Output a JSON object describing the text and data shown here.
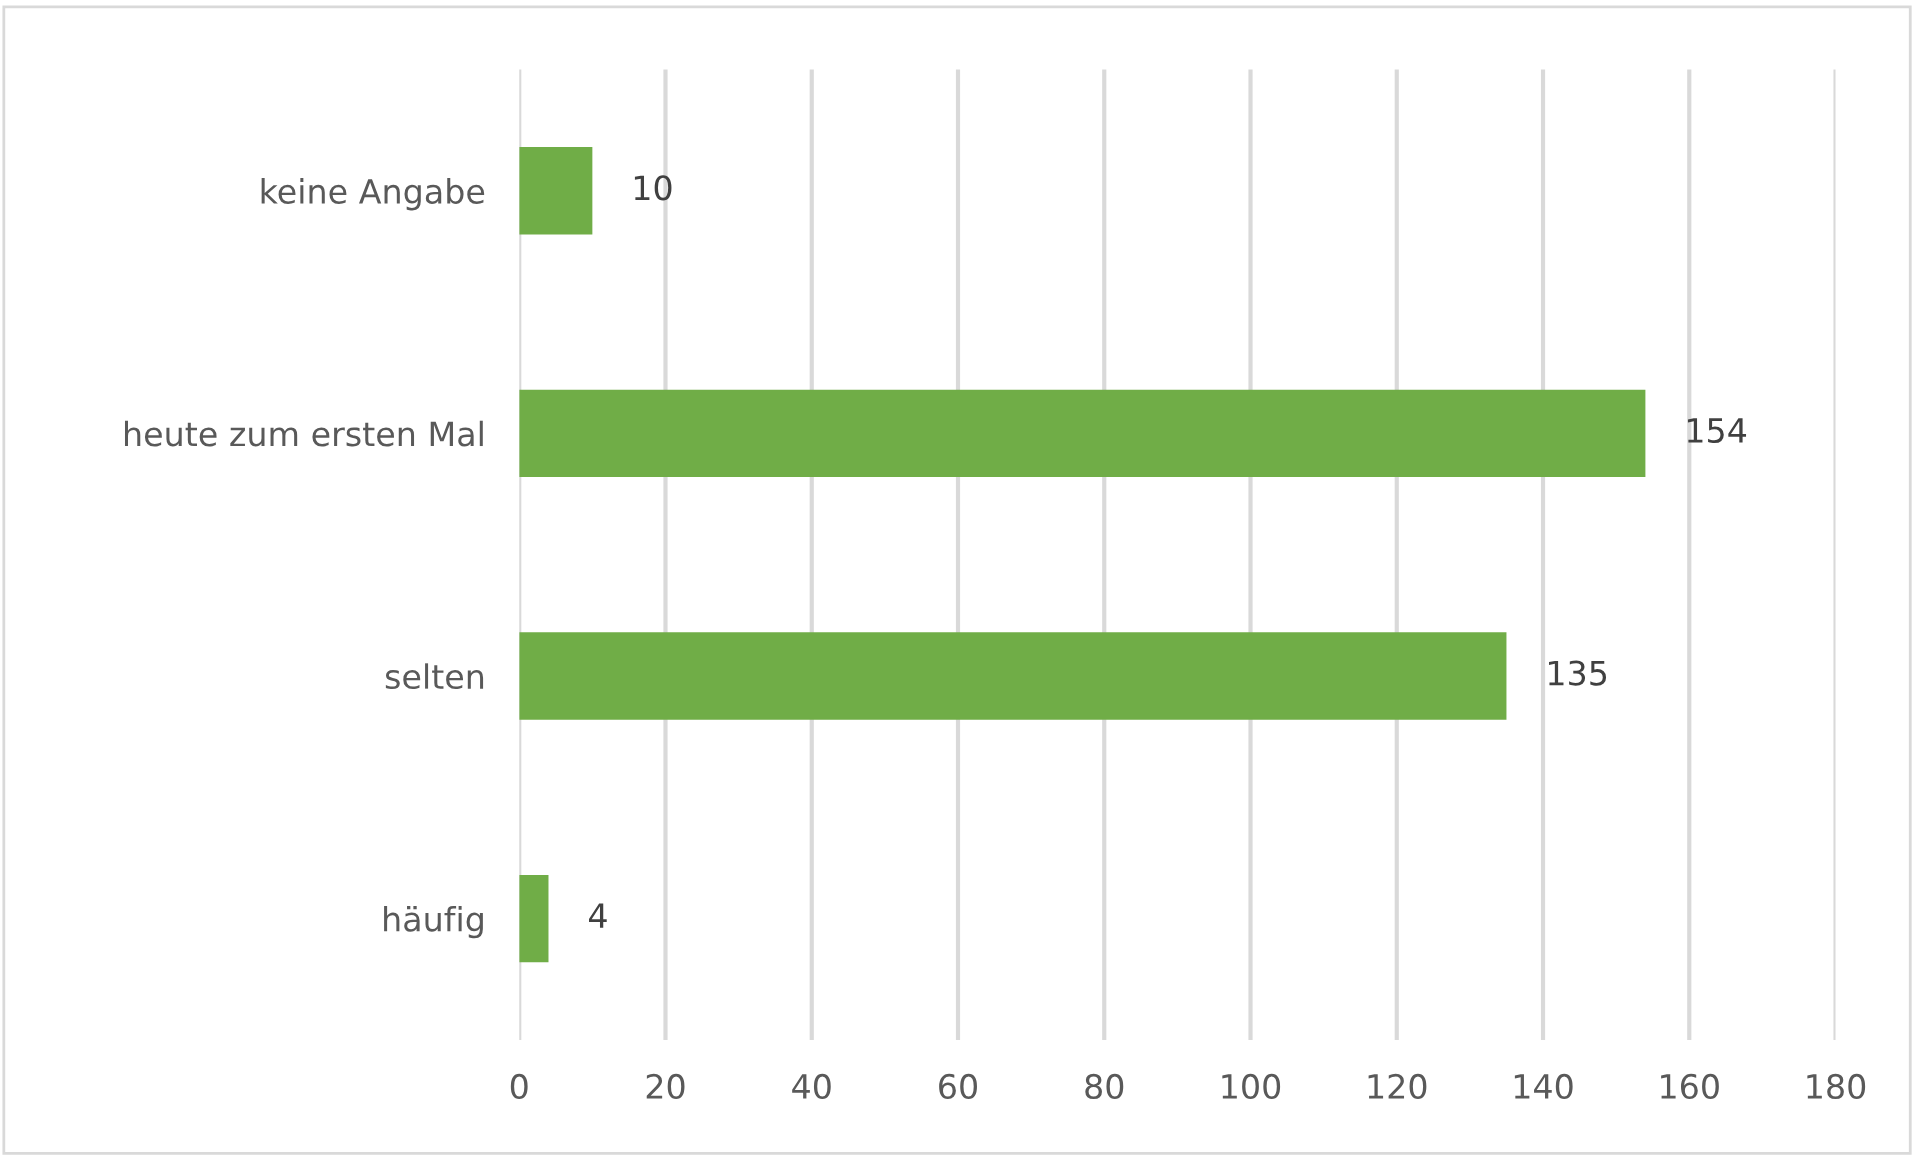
{
  "chart_data": {
    "type": "bar",
    "orientation": "horizontal",
    "categories": [
      "keine Angabe",
      "heute zum ersten Mal",
      "selten",
      "häufig"
    ],
    "values": [
      10,
      154,
      135,
      4
    ],
    "color": "#70ad47",
    "xlim": [
      0,
      180
    ],
    "xticks": [
      0,
      20,
      40,
      60,
      80,
      100,
      120,
      140,
      160,
      180
    ],
    "grid": "x",
    "data_labels": true
  }
}
